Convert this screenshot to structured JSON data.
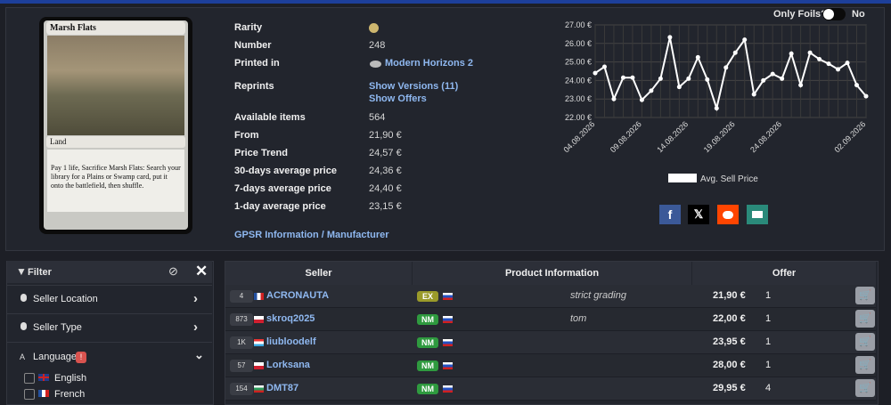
{
  "header": {
    "only_foils_label": "Only Foils?",
    "only_foils_value": "No"
  },
  "card": {
    "name": "Marsh Flats",
    "type": "Land",
    "rules": "Pay 1 life, Sacrifice Marsh Flats: Search your library for a Plains or Swamp card, put it onto the battlefield, then shuffle."
  },
  "info": {
    "rows": [
      {
        "label": "Rarity"
      },
      {
        "label": "Number",
        "values": [
          "248"
        ]
      },
      {
        "label": "Printed in",
        "values": [
          "Modern Horizons 2"
        ]
      },
      {
        "label": "Reprints",
        "values": [
          "Show Versions (11)",
          "Show Offers"
        ]
      },
      {
        "label": "Available items",
        "values": [
          "564"
        ]
      },
      {
        "label": "From",
        "values": [
          "21,90 €"
        ]
      },
      {
        "label": "Price Trend",
        "values": [
          "24,57 €"
        ]
      },
      {
        "label": "30-days average price",
        "values": [
          "24,36 €"
        ]
      },
      {
        "label": "7-days average price",
        "values": [
          "24,40 €"
        ]
      },
      {
        "label": "1-day average price",
        "values": [
          "23,15 €"
        ]
      }
    ],
    "gpsr": "GPSR Information / Manufacturer"
  },
  "chart_data": {
    "type": "line",
    "x": [
      "04.08.2026",
      null,
      null,
      null,
      null,
      "09.08.2026",
      null,
      null,
      null,
      null,
      "14.08.2026",
      null,
      null,
      null,
      null,
      "19.08.2026",
      null,
      null,
      null,
      null,
      "24.08.2026",
      null,
      null,
      null,
      null,
      null,
      null,
      null,
      null,
      "02.09.2026"
    ],
    "series": [
      {
        "name": "Avg. Sell Price",
        "color": "#ffffff",
        "values": [
          24.4,
          24.74,
          23.0,
          24.15,
          24.15,
          22.95,
          23.45,
          24.1,
          26.33,
          23.65,
          24.1,
          25.25,
          24.05,
          22.5,
          24.7,
          25.5,
          26.2,
          23.25,
          24.0,
          24.35,
          24.1,
          25.45,
          23.75,
          25.5,
          25.15,
          24.9,
          24.6,
          24.95,
          23.75,
          23.15
        ]
      }
    ],
    "ylim": [
      22,
      27
    ],
    "yticks": [
      {
        "value": 22,
        "label": "22.00 €"
      },
      {
        "value": 23,
        "label": "23.00 €"
      },
      {
        "value": 24,
        "label": "24.00 €"
      },
      {
        "value": 25,
        "label": "25.00 €"
      },
      {
        "value": 26,
        "label": "26.00 €"
      },
      {
        "value": 27,
        "label": "27.00 €"
      }
    ],
    "grid": true
  },
  "filter": {
    "title": "Filter",
    "items": [
      "Seller Location",
      "Seller Type"
    ],
    "language": {
      "label": "Language",
      "badge": "!",
      "options": [
        "English",
        "French"
      ]
    }
  },
  "table": {
    "headers": [
      "Seller",
      "Product Information",
      "Offer"
    ],
    "rows": [
      {
        "count": "4",
        "seller": "ACRONAUTA",
        "condition": "EX",
        "color": "#9a9a2a",
        "comment": "strict grading",
        "price": "21,90 €",
        "quantity": "1"
      },
      {
        "count": "873",
        "seller": "skroq2025",
        "condition": "NM",
        "color": "#2f9a3f",
        "comment": "tom",
        "price": "22,00 €",
        "quantity": "1"
      },
      {
        "count": "1K",
        "seller": "liubloodelf",
        "condition": "NM",
        "color": "#2f9a3f",
        "price": "23,95 €",
        "quantity": "1"
      },
      {
        "count": "57",
        "seller": "Lorksana",
        "condition": "NM",
        "color": "#2f9a3f",
        "price": "28,00 €",
        "quantity": "1"
      },
      {
        "count": "154",
        "seller": "DMT87",
        "condition": "NM",
        "color": "#2f9a3f",
        "price": "29,95 €",
        "quantity": "4"
      }
    ]
  }
}
